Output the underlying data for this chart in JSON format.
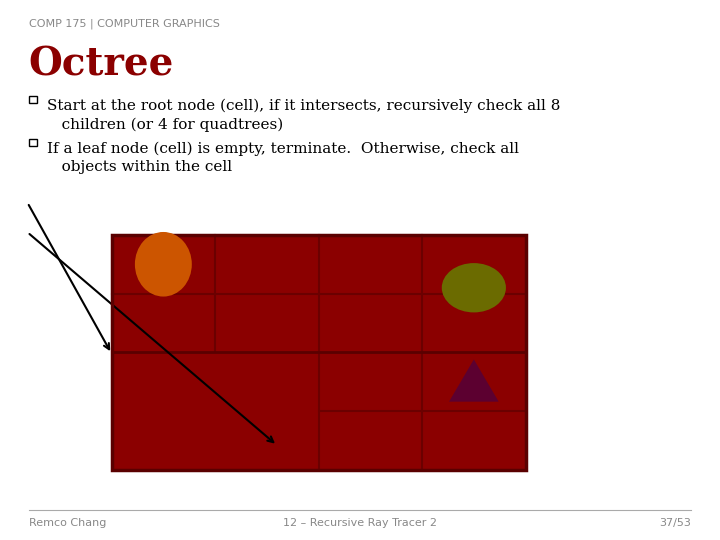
{
  "bg_color": "#ffffff",
  "header_text": "COMP 175 | COMPUTER GRAPHICS",
  "header_color": "#888888",
  "header_fontsize": 8,
  "title_text": "Octree",
  "title_color": "#8b0000",
  "title_fontsize": 28,
  "bullet1": "Start at the root node (cell), if it intersects, recursively check all 8\n   children (or 4 for quadtrees)",
  "bullet2": "If a leaf node (cell) is empty, terminate.  Otherwise, check all\n   objects within the cell",
  "bullet_color": "#000000",
  "bullet_fontsize": 11,
  "footer_left": "Remco Chang",
  "footer_center": "12 – Recursive Ray Tracer 2",
  "footer_right": "37/53",
  "footer_color": "#888888",
  "footer_fontsize": 8,
  "grid_bg_color": "#8b0000",
  "grid_line_color": "#6b0000",
  "orange_circle_color": "#cc5500",
  "olive_ellipse_color": "#6b6b00",
  "dark_red_triangle_color": "#5c0030",
  "ray_line_color": "#000000"
}
